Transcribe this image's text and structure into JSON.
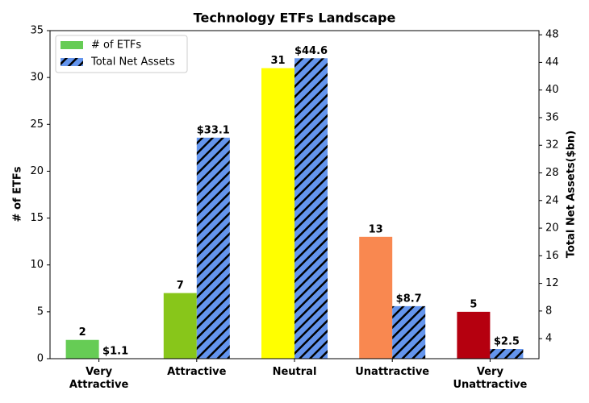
{
  "chart_data": {
    "type": "bar",
    "title": "Technology ETFs Landscape",
    "categories": [
      "Very\nAttractive",
      "Attractive",
      "Neutral",
      "Unattractive",
      "Very\nUnattractive"
    ],
    "ylabel": "# of ETFs",
    "y2label": "Total Net Assets($bn)",
    "ylim": [
      0,
      35
    ],
    "yticks": [
      0,
      5,
      10,
      15,
      20,
      25,
      30,
      35
    ],
    "y2lim": [
      1.1,
      48.6
    ],
    "y2ticks": [
      4,
      8,
      12,
      16,
      20,
      24,
      28,
      32,
      36,
      40,
      44,
      48
    ],
    "legend": "upper left",
    "series": [
      {
        "name": "# of ETFs",
        "colors": [
          "#66cc55",
          "#88c61a",
          "#ffff00",
          "#f98850",
          "#b5000f"
        ],
        "legend_color": "#66cc55",
        "values": [
          2,
          7,
          31,
          13,
          5
        ]
      },
      {
        "name": "Total Net Assets",
        "color": "#6495ed",
        "hatch": "//",
        "axis": "y2",
        "values": [
          1.1,
          33.1,
          44.6,
          8.7,
          2.5
        ],
        "value_labels": [
          "$1.1",
          "$33.1",
          "$44.6",
          "$8.7",
          "$2.5"
        ]
      }
    ]
  }
}
